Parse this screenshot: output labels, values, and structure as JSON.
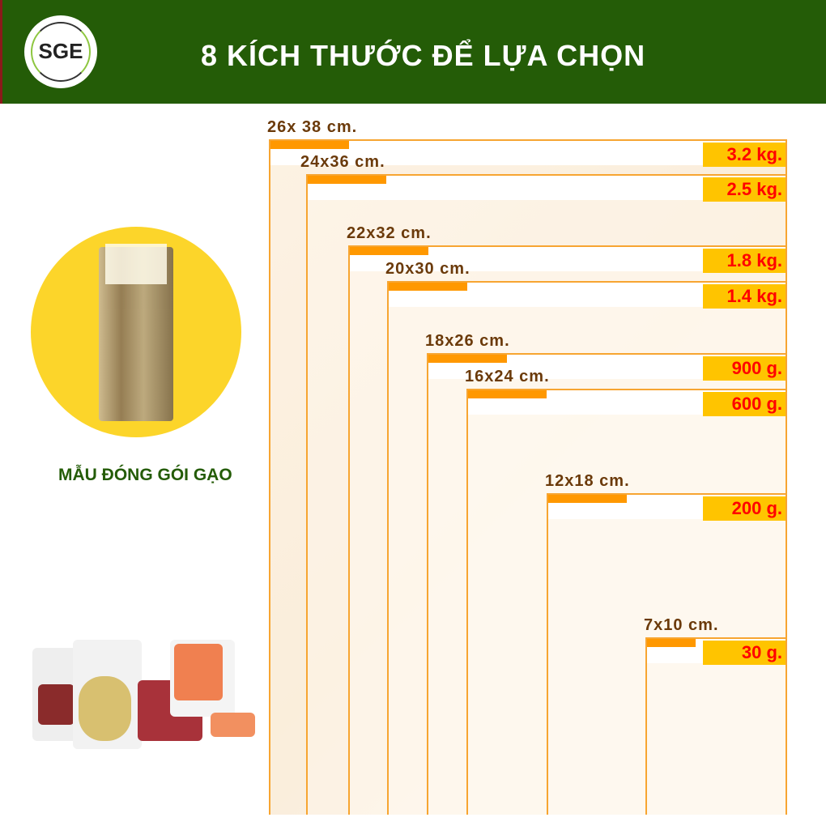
{
  "header": {
    "logo_text": "SGE",
    "title": "8 KÍCH THƯỚC ĐỂ LỰA CHỌN",
    "color": "#245c07"
  },
  "sample": {
    "caption": "MẪU ĐÓNG GÓI GẠO"
  },
  "sizes": [
    {
      "size": "26x 38 cm.",
      "weight": "3.2 kg."
    },
    {
      "size": "24x36 cm.",
      "weight": "2.5 kg."
    },
    {
      "size": "22x32 cm.",
      "weight": "1.8 kg."
    },
    {
      "size": "20x30 cm.",
      "weight": "1.4 kg."
    },
    {
      "size": "18x26 cm.",
      "weight": "900 g."
    },
    {
      "size": "16x24 cm.",
      "weight": "600 g."
    },
    {
      "size": "12x18 cm.",
      "weight": "200 g."
    },
    {
      "size": "7x10 cm.",
      "weight": "30 g."
    }
  ],
  "colors": {
    "tab": "#ff9800",
    "weight_bg": "#ffc400",
    "weight_text": "#ff0000",
    "size_text": "#6b3a0a"
  }
}
